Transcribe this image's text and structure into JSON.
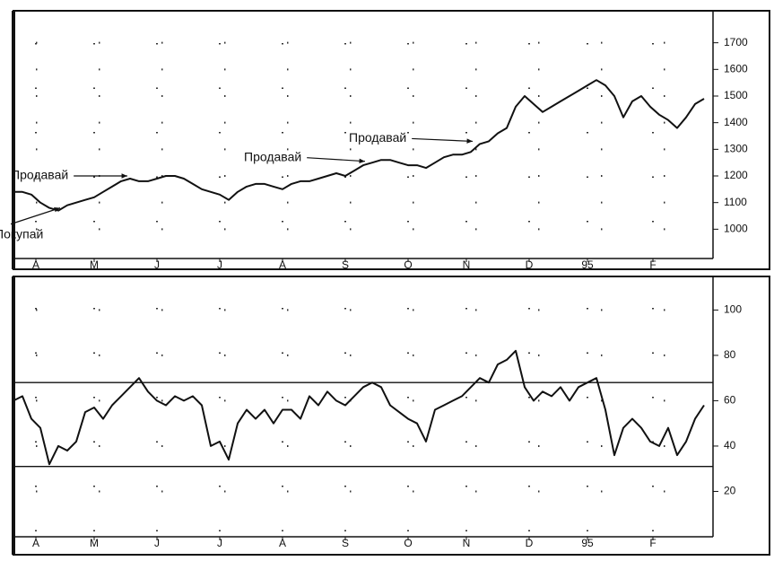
{
  "chart_data": [
    {
      "type": "line",
      "x": [
        0,
        1,
        2,
        3,
        4,
        5,
        6,
        7,
        8,
        9,
        10,
        11,
        12,
        13,
        14,
        15,
        16,
        17,
        18,
        19,
        20,
        21,
        22,
        23,
        24,
        25,
        26,
        27,
        28,
        29,
        30,
        31,
        32,
        33,
        34,
        35,
        36,
        37,
        38,
        39,
        40,
        41,
        42,
        43,
        44,
        45,
        46,
        47,
        48,
        49,
        50,
        51,
        52,
        53,
        54,
        55,
        56,
        57,
        58,
        59,
        60,
        61,
        62,
        63,
        64,
        65,
        66,
        67,
        68,
        69,
        70,
        71,
        72,
        73,
        74,
        75,
        76,
        77
      ],
      "series": [
        {
          "color": "#111111",
          "values": [
            1140,
            1140,
            1130,
            1100,
            1080,
            1070,
            1090,
            1100,
            1110,
            1120,
            1140,
            1160,
            1180,
            1190,
            1180,
            1180,
            1190,
            1200,
            1200,
            1190,
            1170,
            1150,
            1140,
            1130,
            1110,
            1140,
            1160,
            1170,
            1170,
            1160,
            1150,
            1170,
            1180,
            1180,
            1190,
            1200,
            1210,
            1200,
            1220,
            1240,
            1250,
            1260,
            1260,
            1250,
            1240,
            1240,
            1230,
            1250,
            1270,
            1280,
            1280,
            1290,
            1320,
            1330,
            1360,
            1380,
            1460,
            1500,
            1470,
            1440,
            1460,
            1480,
            1500,
            1520,
            1540,
            1560,
            1540,
            1500,
            1420,
            1480,
            1500,
            1460,
            1430,
            1410,
            1380,
            1420,
            1470,
            1490
          ]
        }
      ],
      "xlim": [
        0,
        78
      ],
      "xticks": [
        {
          "value": 2.5,
          "label": "A"
        },
        {
          "value": 9,
          "label": "M"
        },
        {
          "value": 16,
          "label": "J"
        },
        {
          "value": 23,
          "label": "J"
        },
        {
          "value": 30,
          "label": "A"
        },
        {
          "value": 37,
          "label": "S"
        },
        {
          "value": 44,
          "label": "O"
        },
        {
          "value": 50.5,
          "label": "N"
        },
        {
          "value": 57.5,
          "label": "D"
        },
        {
          "value": 64,
          "label": "95"
        },
        {
          "value": 71.3,
          "label": "F"
        }
      ],
      "ylim": [
        890,
        1810
      ],
      "yticks": [
        1000,
        1100,
        1200,
        1300,
        1400,
        1500,
        1600,
        1700
      ],
      "grid": true,
      "annotations": [
        {
          "text": "Продавай",
          "x": 13,
          "y": 1200
        },
        {
          "text": "Покупай",
          "x": 5.5,
          "y": 1080
        },
        {
          "text": "Продавай",
          "x": 39.5,
          "y": 1255
        },
        {
          "text": "Продавай",
          "x": 51.5,
          "y": 1330
        }
      ]
    },
    {
      "type": "line",
      "x": [
        0,
        1,
        2,
        3,
        4,
        5,
        6,
        7,
        8,
        9,
        10,
        11,
        12,
        13,
        14,
        15,
        16,
        17,
        18,
        19,
        20,
        21,
        22,
        23,
        24,
        25,
        26,
        27,
        28,
        29,
        30,
        31,
        32,
        33,
        34,
        35,
        36,
        37,
        38,
        39,
        40,
        41,
        42,
        43,
        44,
        45,
        46,
        47,
        48,
        49,
        50,
        51,
        52,
        53,
        54,
        55,
        56,
        57,
        58,
        59,
        60,
        61,
        62,
        63,
        64,
        65,
        66,
        67,
        68,
        69,
        70,
        71,
        72,
        73,
        74,
        75,
        76,
        77
      ],
      "series": [
        {
          "color": "#111111",
          "values": [
            60,
            62,
            52,
            48,
            32,
            40,
            38,
            42,
            55,
            57,
            52,
            58,
            62,
            66,
            70,
            64,
            60,
            58,
            62,
            60,
            62,
            58,
            40,
            42,
            34,
            50,
            56,
            52,
            56,
            50,
            56,
            56,
            52,
            62,
            58,
            64,
            60,
            58,
            62,
            66,
            68,
            66,
            58,
            55,
            52,
            50,
            42,
            56,
            58,
            60,
            62,
            66,
            70,
            68,
            76,
            78,
            82,
            66,
            60,
            64,
            62,
            66,
            60,
            66,
            68,
            70,
            56,
            36,
            48,
            52,
            48,
            42,
            40,
            48,
            36,
            42,
            52,
            58
          ]
        }
      ],
      "xlim": [
        0,
        78
      ],
      "xticks": [
        {
          "value": 2.5,
          "label": "A"
        },
        {
          "value": 9,
          "label": "M"
        },
        {
          "value": 16,
          "label": "J"
        },
        {
          "value": 23,
          "label": "J"
        },
        {
          "value": 30,
          "label": "A"
        },
        {
          "value": 37,
          "label": "S"
        },
        {
          "value": 44,
          "label": "O"
        },
        {
          "value": 50.5,
          "label": "N"
        },
        {
          "value": 57.5,
          "label": "D"
        },
        {
          "value": 64,
          "label": "95"
        },
        {
          "value": 71.3,
          "label": "F"
        }
      ],
      "ylim": [
        0,
        114
      ],
      "yticks": [
        20,
        40,
        60,
        80,
        100
      ],
      "grid": true,
      "hlines": [
        68,
        31
      ]
    }
  ]
}
